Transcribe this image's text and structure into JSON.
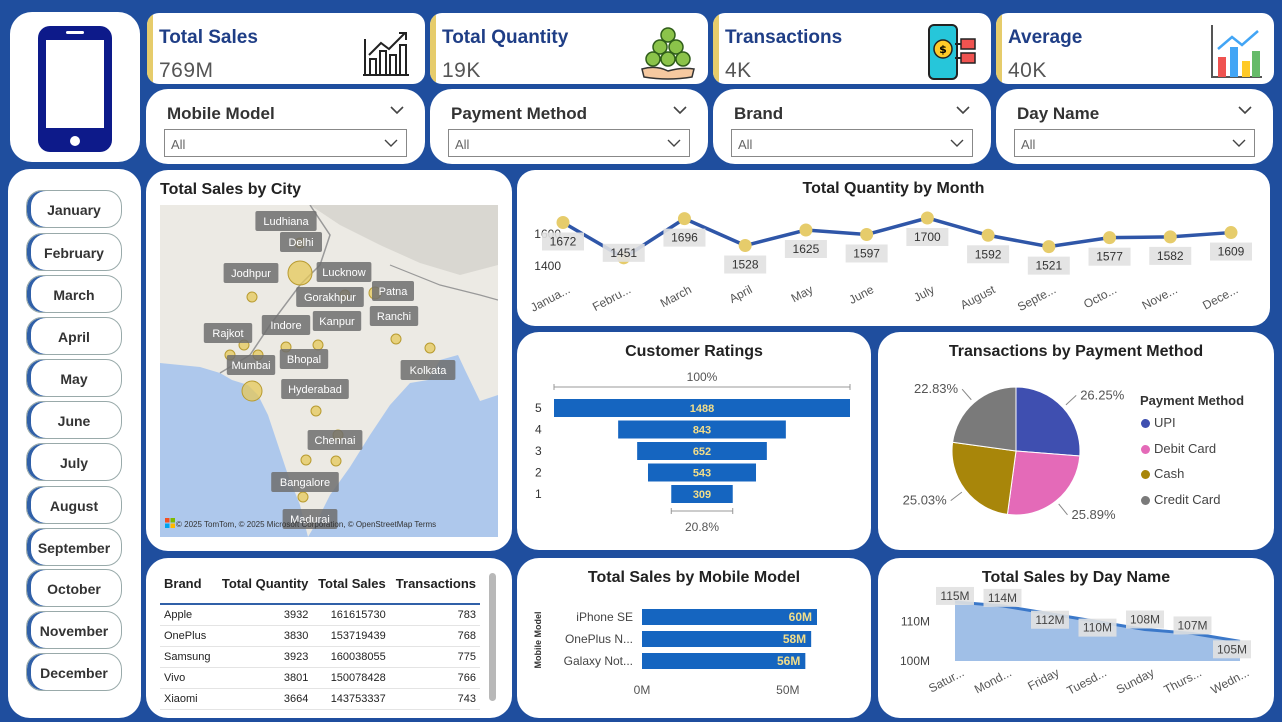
{
  "kpis": [
    {
      "title": "Total Sales",
      "value": "769M",
      "icon": "bar-chart-icon"
    },
    {
      "title": "Total Quantity",
      "value": "19K",
      "icon": "coin-stack-icon"
    },
    {
      "title": "Transactions",
      "value": "4K",
      "icon": "phone-payment-icon"
    },
    {
      "title": "Average",
      "value": "40K",
      "icon": "column-chart-icon"
    }
  ],
  "slicers": [
    {
      "title": "Mobile Model",
      "value": "All"
    },
    {
      "title": "Payment Method",
      "value": "All"
    },
    {
      "title": "Brand",
      "value": "All"
    },
    {
      "title": "Day Name",
      "value": "All"
    }
  ],
  "months": [
    "January",
    "February",
    "March",
    "April",
    "May",
    "June",
    "July",
    "August",
    "September",
    "October",
    "November",
    "December"
  ],
  "map": {
    "title": "Total Sales by City",
    "cities": [
      "Ludhiana",
      "Delhi",
      "Jodhpur",
      "Lucknow",
      "Gorakhpur",
      "Patna",
      "Indore",
      "Kanpur",
      "Ranchi",
      "Rajkot",
      "Mumbai",
      "Bhopal",
      "Kolkata",
      "Hyderabad",
      "Chennai",
      "Bangalore",
      "Madurai"
    ],
    "attribution": "© 2025 TomTom, © 2025 Microsoft Corporation, © OpenStreetMap Terms"
  },
  "brand_table": {
    "headers": [
      "Brand",
      "Total Quantity",
      "Total Sales",
      "Transactions"
    ],
    "rows": [
      [
        "Apple",
        "3932",
        "161615730",
        "783"
      ],
      [
        "OnePlus",
        "3830",
        "153719439",
        "768"
      ],
      [
        "Samsung",
        "3923",
        "160038055",
        "775"
      ],
      [
        "Vivo",
        "3801",
        "150078428",
        "766"
      ],
      [
        "Xiaomi",
        "3664",
        "143753337",
        "743"
      ]
    ]
  },
  "colors": {
    "background": "#1f4e9e",
    "accent": "#e6cc6b",
    "bar": "#1565c0",
    "line": "#2f56a8"
  },
  "chart_data": [
    {
      "type": "line",
      "title": "Total Quantity by Month",
      "x": [
        "Janua...",
        "Febru...",
        "March",
        "April",
        "May",
        "June",
        "July",
        "August",
        "Septe...",
        "Octo...",
        "Nove...",
        "Dece..."
      ],
      "series": [
        {
          "values": [
            1672,
            1451,
            1696,
            1528,
            1625,
            1597,
            1700,
            1592,
            1521,
            1577,
            1582,
            1609
          ]
        }
      ],
      "ylim": [
        1300,
        1750
      ],
      "yticks": [
        "1600",
        "1400"
      ],
      "grid": false
    },
    {
      "type": "bar",
      "title": "Customer Ratings",
      "categories": [
        "5",
        "4",
        "3",
        "2",
        "1"
      ],
      "values": [
        1488,
        843,
        652,
        543,
        309
      ],
      "top_label": "100%",
      "bottom_label": "20.8%"
    },
    {
      "type": "pie",
      "title": "Transactions by Payment Method",
      "legend_title": "Payment Method",
      "legend_position": "right",
      "slices": [
        {
          "name": "UPI",
          "value": 26.25,
          "label": "26.25%",
          "color": "#3f4fb0"
        },
        {
          "name": "Debit Card",
          "value": 25.89,
          "label": "25.89%",
          "color": "#e46ab8"
        },
        {
          "name": "Cash",
          "value": 25.03,
          "label": "25.03%",
          "color": "#a8860a"
        },
        {
          "name": "Credit Card",
          "value": 22.83,
          "label": "22.83%",
          "color": "#7a7a7a"
        }
      ]
    },
    {
      "type": "bar",
      "title": "Total Sales by Mobile Model",
      "ylabel": "Mobile Model",
      "categories": [
        "iPhone SE",
        "OnePlus N...",
        "Galaxy Not..."
      ],
      "values": [
        60,
        58,
        56
      ],
      "value_labels": [
        "60M",
        "58M",
        "56M"
      ],
      "xticks": [
        "0M",
        "50M"
      ],
      "xlim": [
        0,
        60
      ]
    },
    {
      "type": "area",
      "title": "Total Sales by Day Name",
      "x": [
        "Satur...",
        "Mond...",
        "Friday",
        "Tuesd...",
        "Sunday",
        "Thurs...",
        "Wedn..."
      ],
      "series": [
        {
          "values": [
            115,
            114,
            112,
            110,
            108,
            107,
            105
          ],
          "labels": [
            "115M",
            "114M",
            "112M",
            "110M",
            "108M",
            "107M",
            "105M"
          ]
        }
      ],
      "yticks": [
        "110M",
        "100M"
      ],
      "ylim": [
        100,
        116
      ]
    }
  ]
}
